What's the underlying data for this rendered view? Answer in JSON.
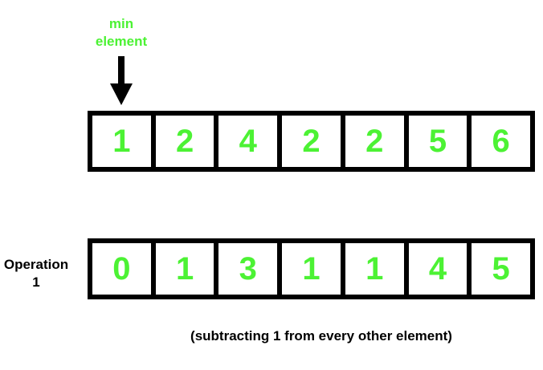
{
  "min_label": {
    "line1": "min",
    "line2": "element"
  },
  "top_array": {
    "cells": [
      "1",
      "2",
      "4",
      "2",
      "2",
      "5",
      "6"
    ]
  },
  "operation_label": {
    "line1": "Operation",
    "line2": "1"
  },
  "bottom_array": {
    "cells": [
      "0",
      "1",
      "3",
      "1",
      "1",
      "4",
      "5"
    ]
  },
  "caption": "(subtracting 1 from every other element)",
  "colors": {
    "accent": "#4cf234",
    "border": "#000000",
    "text": "#000000"
  },
  "icons": {
    "pointer": "down-arrow-icon"
  }
}
